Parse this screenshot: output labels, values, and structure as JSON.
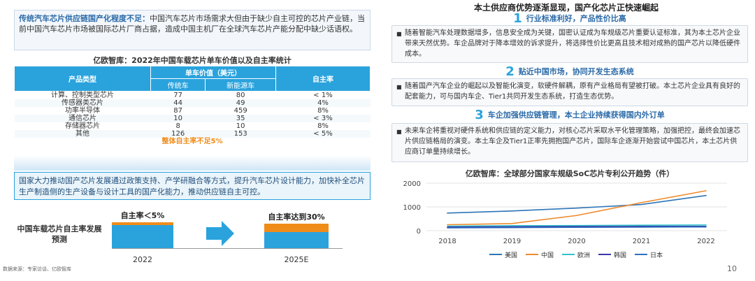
{
  "left": {
    "intro": {
      "heading": "传统汽车芯片供应链国产化程度不足：",
      "body": "中国汽车芯片市场需求大但由于缺少自主可控的芯片产业链，当前中国汽车芯片市场被国际芯片厂商占据，造成中国主机厂在全球汽车芯片产能分配中缺少话语权。"
    },
    "table_title": "亿欧智库：2022年中国车载芯片单车价值以及自主率统计",
    "table": {
      "col_product": "产品类型",
      "col_value": "单车价值（美元）",
      "col_fuel": "传统车",
      "col_ev": "新能源车",
      "col_rate": "自主率",
      "rows": [
        [
          "计算、控制类型芯片",
          "77",
          "80",
          "< 1%"
        ],
        [
          "传感器类芯片",
          "44",
          "49",
          "4%"
        ],
        [
          "功率半导体",
          "87",
          "459",
          "8%"
        ],
        [
          "通信芯片",
          "10",
          "35",
          "< 3%"
        ],
        [
          "存储器芯片",
          "8",
          "10",
          "8%"
        ],
        [
          "其他",
          "126",
          "153",
          "< 5%"
        ]
      ],
      "summary": "整体自主率不足5%"
    },
    "policy": "国家大力推动国产芯片发展通过政策支持、产学研融合等方式，提升汽车芯片设计能力，加快补全芯片生产制造侧的生产设备与设计工具的国产化能力，推动供应链自主可控。",
    "forecast": {
      "label": "中国车载芯片自主率发展预测",
      "bar1_label": "自主率＜5%",
      "bar2_label": "自主率达到30%",
      "year1": "2022",
      "year2": "2025E"
    },
    "source": "数据来源：专家访谈、亿欧智库"
  },
  "right": {
    "title": "本土供应商优势逐渐显现，国产化芯片正快速崛起",
    "points": [
      {
        "num": "1",
        "head": "行业标准利好，产品性价比高",
        "body": "随着智能汽车处理数据增多，信息安全成为关键，国密认证成为车规级芯片重要认证标准，其为本土芯片企业带来天然优势。车企品牌对于降本增效的诉求提升，将选择性价比更高且技术相对成熟的国产芯片以降低硬件成本。"
      },
      {
        "num": "2",
        "head": "贴近中国市场，协同开发生态系统",
        "body": "随着国产汽车企业的崛起以及智能化演变，软硬件解耦，原有产业格局有望被打破。本土芯片企业具有良好的配套能力，可与国内车企、Tier1共同开发生态系统，打造生态优势。"
      },
      {
        "num": "3",
        "head": "车企加强供应链管理，本土企业持续获得国内外订单",
        "body": "未来车企将重视对硬件系统和供应链的定义能力，对核心芯片采取水平化管理策略，加强把控，最终会加速芯片供应链格局的演变。本土车企及Tier1正率先拥抱国产芯片，国际车企逐渐开始尝试中国芯片，本土芯片供应商订单量持续增长。"
      }
    ]
  },
  "page_number": "10",
  "colors": {
    "accent": "#2aa3dd",
    "orange": "#f08c1a"
  },
  "chart_data": {
    "type": "line",
    "title": "亿欧智库：全球部分国家车规级SoC芯片专利公开趋势（件）",
    "x": [
      "2018",
      "2019",
      "2020",
      "2021",
      "2022"
    ],
    "ylim": [
      0,
      2000
    ],
    "yticks": [
      0,
      1000,
      2000
    ],
    "grid": true,
    "legend": "bottom",
    "series": [
      {
        "name": "美国",
        "color": "#2e75b6",
        "values": [
          740,
          830,
          950,
          1100,
          1480
        ]
      },
      {
        "name": "中国",
        "color": "#ed8a2b",
        "values": [
          250,
          300,
          640,
          1180,
          1680
        ]
      },
      {
        "name": "欧洲",
        "color": "#33c2cc",
        "values": [
          190,
          210,
          215,
          230,
          240
        ]
      },
      {
        "name": "韩国",
        "color": "#3a36a8",
        "values": [
          140,
          150,
          160,
          170,
          170
        ]
      },
      {
        "name": "日本",
        "color": "#2f6fbf",
        "values": [
          120,
          130,
          140,
          150,
          160
        ]
      }
    ]
  }
}
